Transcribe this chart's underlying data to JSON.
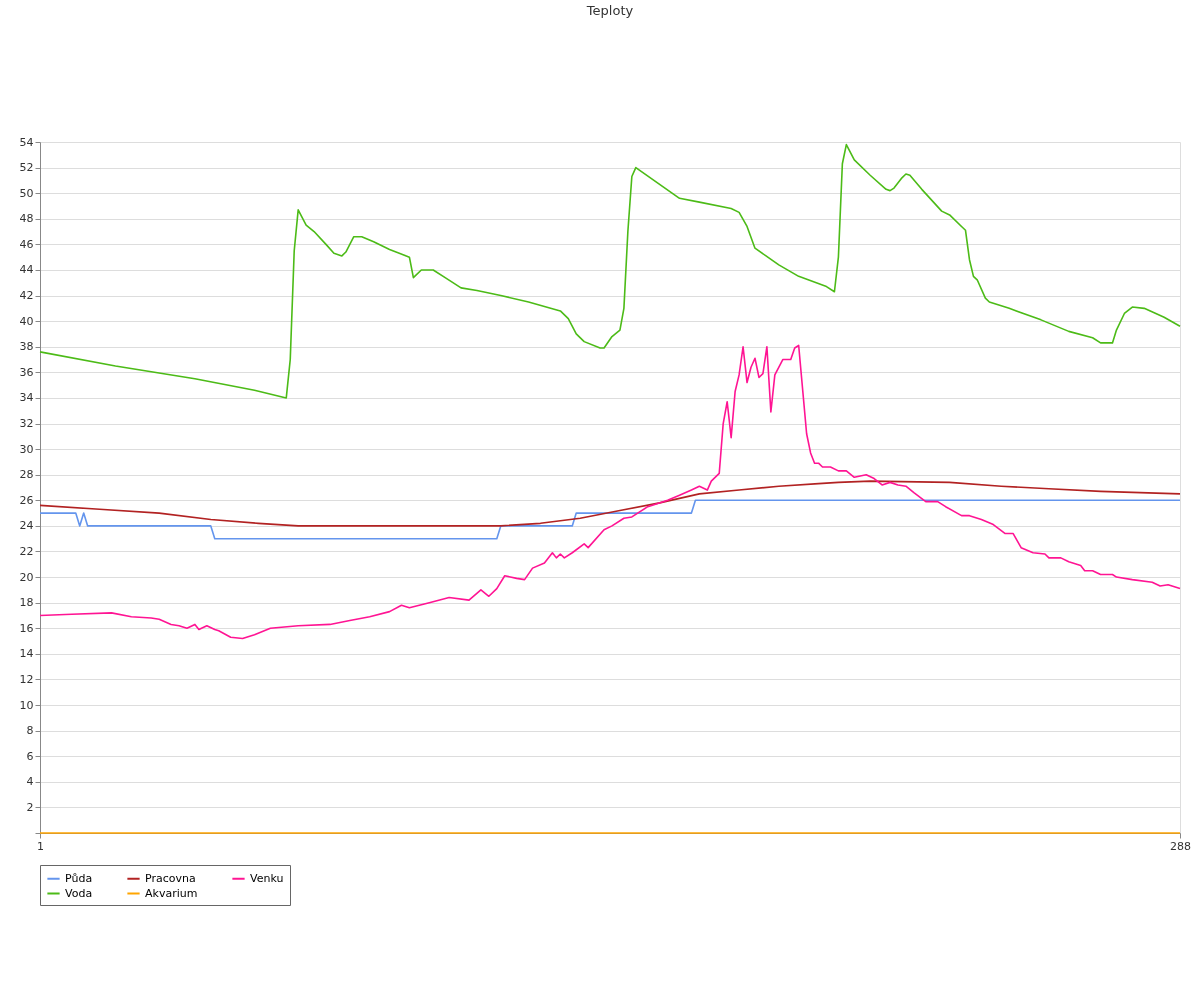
{
  "chart_data": {
    "type": "line",
    "title": "Teploty",
    "xlim": [
      1,
      288
    ],
    "xticks": [
      1,
      {
        "value": 288,
        "label": "288"
      }
    ],
    "ylim": [
      0,
      54
    ],
    "yticks": [
      {
        "value": 0,
        "label": null
      },
      2,
      4,
      6,
      8,
      10,
      12,
      14,
      16,
      18,
      20,
      22,
      24,
      26,
      28,
      30,
      32,
      34,
      36,
      38,
      40,
      42,
      44,
      46,
      48,
      50,
      52,
      54
    ],
    "grid": true,
    "legend": "bottom",
    "marker": "none",
    "line_style": "solid",
    "series": [
      {
        "name": "Půda",
        "color": "#6495ed",
        "x": [
          1,
          10,
          11,
          12,
          13,
          44,
          45,
          116,
          117,
          135,
          136,
          165,
          166,
          288
        ],
        "values": [
          25,
          25,
          24,
          25,
          24,
          24,
          23,
          23,
          24,
          24,
          25,
          25,
          26,
          26
        ]
      },
      {
        "name": "Pracovna",
        "color": "#b22222",
        "x": [
          1,
          16,
          31,
          44,
          56,
          66,
          117,
          127,
          137,
          147,
          157,
          167,
          177,
          187,
          197,
          202,
          210,
          230,
          243,
          255,
          268,
          288
        ],
        "values": [
          25.6,
          25.3,
          25.0,
          24.5,
          24.2,
          24.0,
          24.0,
          24.2,
          24.6,
          25.2,
          25.8,
          26.5,
          26.8,
          27.1,
          27.3,
          27.4,
          27.5,
          27.4,
          27.1,
          26.9,
          26.7,
          26.5
        ]
      },
      {
        "name": "Venku",
        "color": "#ff1493",
        "x": [
          1,
          9,
          19,
          24,
          29,
          31,
          34,
          36,
          38,
          40,
          41,
          43,
          45,
          46,
          49,
          52,
          55,
          59,
          66,
          74,
          79,
          84,
          89,
          92,
          94,
          99,
          104,
          109,
          112,
          114,
          116,
          118,
          121,
          123,
          125,
          128,
          130,
          131,
          132,
          133,
          135,
          138,
          139,
          143,
          145,
          148,
          150,
          154,
          155,
          159,
          162,
          165,
          167,
          169,
          170,
          172,
          173,
          174,
          175,
          176,
          177,
          178,
          179,
          180,
          181,
          182,
          183,
          184,
          185,
          186,
          188,
          190,
          191,
          192,
          194,
          195,
          196,
          197,
          198,
          200,
          202,
          204,
          206,
          209,
          211,
          213,
          215,
          217,
          219,
          221,
          224,
          227,
          229,
          233,
          235,
          238,
          241,
          244,
          246,
          248,
          251,
          254,
          255,
          258,
          260,
          263,
          264,
          266,
          268,
          271,
          272,
          276,
          281,
          283,
          285,
          288
        ],
        "values": [
          17.0,
          17.1,
          17.2,
          16.9,
          16.8,
          16.7,
          16.3,
          16.2,
          16.0,
          16.3,
          15.9,
          16.2,
          15.9,
          15.8,
          15.3,
          15.2,
          15.5,
          16.0,
          16.2,
          16.3,
          16.6,
          16.9,
          17.3,
          17.8,
          17.6,
          18.0,
          18.4,
          18.2,
          19.0,
          18.5,
          19.1,
          20.1,
          19.9,
          19.8,
          20.7,
          21.1,
          21.9,
          21.5,
          21.8,
          21.5,
          21.9,
          22.6,
          22.3,
          23.7,
          24.0,
          24.6,
          24.7,
          25.5,
          25.6,
          26.0,
          26.4,
          26.8,
          27.1,
          26.8,
          27.5,
          28.1,
          32.0,
          33.7,
          30.9,
          34.5,
          35.8,
          38.0,
          35.2,
          36.4,
          37.1,
          35.6,
          35.9,
          38.0,
          32.9,
          35.8,
          37.0,
          37.0,
          37.9,
          38.1,
          31.2,
          29.7,
          28.9,
          28.9,
          28.6,
          28.6,
          28.3,
          28.3,
          27.8,
          28.0,
          27.7,
          27.2,
          27.4,
          27.2,
          27.1,
          26.6,
          25.9,
          25.9,
          25.5,
          24.8,
          24.8,
          24.5,
          24.1,
          23.4,
          23.4,
          22.3,
          21.9,
          21.8,
          21.5,
          21.5,
          21.2,
          20.9,
          20.5,
          20.5,
          20.2,
          20.2,
          20.0,
          19.8,
          19.6,
          19.3,
          19.4,
          19.1
        ]
      },
      {
        "name": "Voda",
        "color": "#4cbb17",
        "x": [
          1,
          20,
          40,
          55,
          63,
          64,
          65,
          66,
          68,
          70,
          73,
          75,
          77,
          78,
          80,
          82,
          85,
          89,
          94,
          95,
          97,
          100,
          103,
          107,
          111,
          117,
          124,
          132,
          134,
          136,
          138,
          142,
          143,
          145,
          147,
          148,
          149,
          150,
          151,
          162,
          167,
          175,
          177,
          179,
          181,
          187,
          192,
          199,
          201,
          202,
          203,
          204,
          206,
          210,
          214,
          215,
          216,
          218,
          219,
          220,
          223,
          228,
          230,
          233,
          234,
          235,
          236,
          237,
          239,
          240,
          245,
          253,
          260,
          266,
          268,
          271,
          272,
          274,
          276,
          279,
          284,
          288
        ],
        "values": [
          37.6,
          36.5,
          35.5,
          34.6,
          34.0,
          37,
          45.5,
          48.7,
          47.5,
          47,
          46,
          45.3,
          45.1,
          45.4,
          46.6,
          46.6,
          46.2,
          45.6,
          45,
          43.4,
          44,
          44,
          43.4,
          42.6,
          42.4,
          42,
          41.5,
          40.8,
          40.2,
          39,
          38.4,
          37.9,
          37.9,
          38.8,
          39.3,
          41,
          47,
          51.3,
          52,
          49.6,
          49.3,
          48.8,
          48.5,
          47.4,
          45.7,
          44.4,
          43.5,
          42.7,
          42.3,
          45,
          52.3,
          53.8,
          52.6,
          51.4,
          50.3,
          50.2,
          50.4,
          51.2,
          51.5,
          51.4,
          50.3,
          48.6,
          48.3,
          47.4,
          47.1,
          44.8,
          43.5,
          43.2,
          41.8,
          41.5,
          41,
          40.1,
          39.2,
          38.7,
          38.3,
          38.3,
          39.3,
          40.6,
          41.1,
          41,
          40.3,
          39.6
        ]
      },
      {
        "name": "Akvarium",
        "color": "#ffa500",
        "x": [
          1,
          288
        ],
        "values": [
          0,
          0
        ]
      }
    ]
  }
}
